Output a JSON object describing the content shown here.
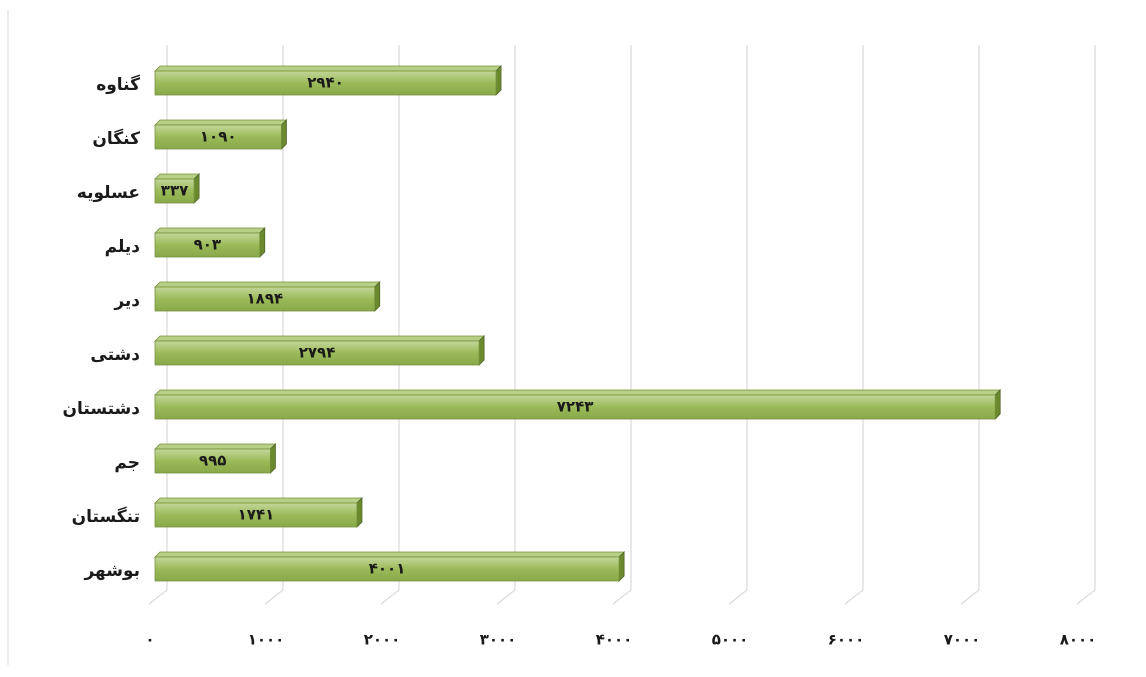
{
  "chart_data": {
    "type": "bar",
    "orientation": "horizontal",
    "categories": [
      "گناوه",
      "کنگان",
      "عسلویه",
      "دیلم",
      "دیر",
      "دشتی",
      "دشتستان",
      "جم",
      "تنگستان",
      "بوشهر"
    ],
    "values": [
      2940,
      1090,
      337,
      903,
      1894,
      2794,
      7243,
      995,
      1741,
      4001
    ],
    "value_labels": [
      "۲۹۴۰",
      "۱۰۹۰",
      "۳۳۷",
      "۹۰۳",
      "۱۸۹۴",
      "۲۷۹۴",
      "۷۲۴۳",
      "۹۹۵",
      "۱۷۴۱",
      "۴۰۰۱"
    ],
    "color": "#9bbb59",
    "xlim": [
      0,
      8000
    ],
    "xticks": [
      {
        "value": 0,
        "label": "۰"
      },
      {
        "value": 1000,
        "label": "۱۰۰۰"
      },
      {
        "value": 2000,
        "label": "۲۰۰۰"
      },
      {
        "value": 3000,
        "label": "۳۰۰۰"
      },
      {
        "value": 4000,
        "label": "۴۰۰۰"
      },
      {
        "value": 5000,
        "label": "۵۰۰۰"
      },
      {
        "value": 6000,
        "label": "۶۰۰۰"
      },
      {
        "value": 7000,
        "label": "۷۰۰۰"
      },
      {
        "value": 8000,
        "label": "۸۰۰۰"
      }
    ],
    "grid": true
  }
}
